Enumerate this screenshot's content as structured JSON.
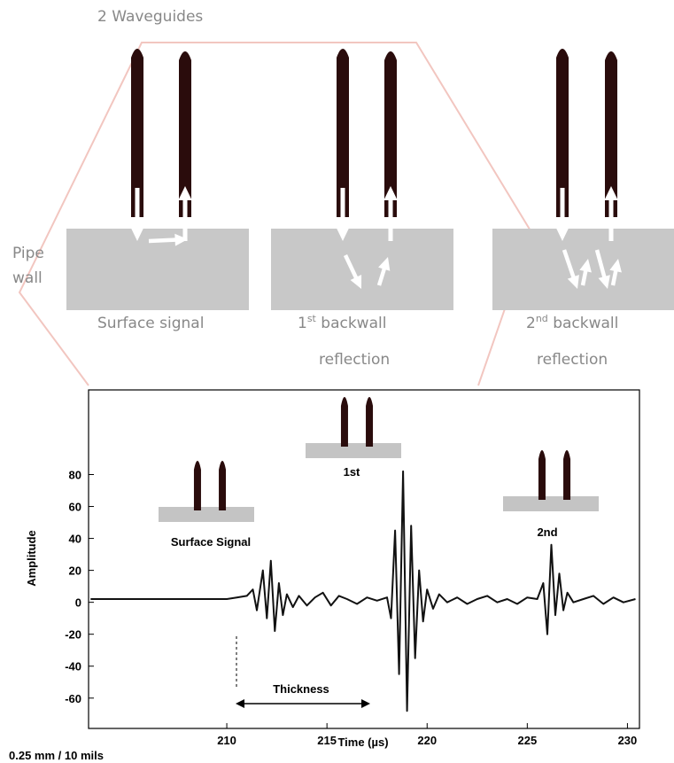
{
  "diagram": {
    "title": "2 Waveguides",
    "side_label": [
      "Pipe",
      "wall"
    ],
    "panels": [
      {
        "label": "Surface  signal"
      },
      {
        "label_num": "1",
        "label_sup": "st",
        "label_rest": " backwall",
        "label_line2": "reflection"
      },
      {
        "label_num": "2",
        "label_sup": "nd",
        "label_rest": " backwall",
        "label_line2": "reflection"
      }
    ],
    "footnote": "0.25 mm / 10 mils"
  },
  "chart_data": {
    "type": "line",
    "xlabel": "Time (µs)",
    "ylabel": "Amplitude",
    "color": "#111111",
    "annotations": [
      "Surface Signal",
      "1st",
      "2nd",
      "Thickness"
    ],
    "x": [
      203.2,
      204,
      205,
      206,
      207,
      208,
      209,
      210,
      210.5,
      211,
      211.3,
      211.5,
      211.8,
      212.0,
      212.2,
      212.4,
      212.6,
      212.8,
      213.0,
      213.3,
      213.6,
      214.0,
      214.4,
      214.8,
      215.2,
      215.6,
      216.0,
      216.5,
      217.0,
      217.5,
      218.0,
      218.2,
      218.4,
      218.6,
      218.8,
      219.0,
      219.2,
      219.4,
      219.6,
      219.8,
      220.0,
      220.3,
      220.6,
      221.0,
      221.5,
      222.0,
      222.5,
      223.0,
      223.5,
      224.0,
      224.5,
      225.0,
      225.5,
      225.8,
      226.0,
      226.2,
      226.4,
      226.6,
      226.8,
      227.0,
      227.3,
      227.8,
      228.3,
      228.8,
      229.3,
      229.8,
      230.4
    ],
    "values": [
      2,
      2,
      2,
      2,
      2,
      2,
      2,
      2,
      3,
      4,
      8,
      -5,
      20,
      -10,
      26,
      -18,
      12,
      -8,
      5,
      -3,
      4,
      -2,
      3,
      6,
      -2,
      4,
      2,
      -1,
      3,
      1,
      3,
      -10,
      45,
      -45,
      82,
      -68,
      48,
      -35,
      20,
      -12,
      8,
      -4,
      5,
      0,
      3,
      -1,
      2,
      4,
      0,
      2,
      -1,
      3,
      2,
      12,
      -20,
      36,
      -8,
      18,
      -5,
      6,
      0,
      2,
      4,
      -1,
      3,
      0,
      2
    ],
    "xlim": [
      203.1,
      230.6
    ],
    "ylim": [
      -79,
      133
    ],
    "xticks": [
      210,
      215,
      220,
      225,
      230
    ],
    "yticks": [
      -60,
      -40,
      -20,
      0,
      20,
      40,
      60,
      80
    ]
  }
}
